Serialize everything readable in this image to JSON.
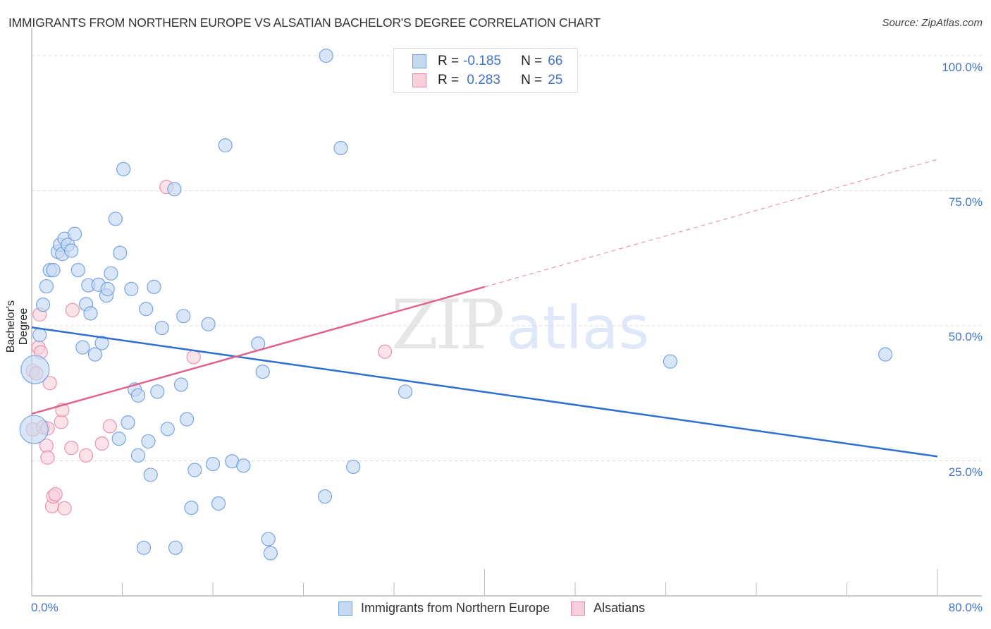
{
  "header": {
    "title": "IMMIGRANTS FROM NORTHERN EUROPE VS ALSATIAN BACHELOR'S DEGREE CORRELATION CHART",
    "source": "Source: ZipAtlas.com"
  },
  "legend_top": {
    "rows": [
      {
        "r_label": "R =",
        "r_value": "-0.185",
        "n_label": "N =",
        "n_value": "66"
      },
      {
        "r_label": "R =",
        "r_value": " 0.283",
        "n_label": "N =",
        "n_value": "25"
      }
    ]
  },
  "legend_bottom": {
    "items": [
      {
        "label": "Immigrants from Northern Europe"
      },
      {
        "label": "Alsatians"
      }
    ]
  },
  "axes": {
    "ylabel": "Bachelor's Degree",
    "yticks": [
      "100.0%",
      "75.0%",
      "50.0%",
      "25.0%"
    ],
    "xticks": [
      "0.0%",
      "80.0%"
    ]
  },
  "watermark": {
    "zip": "ZIP",
    "atlas": "atlas"
  },
  "colors": {
    "blue_fill": "#c5d9f3",
    "blue_stroke": "#6b9be0",
    "blue_line": "#2e6fd1",
    "pink_fill": "#f8cfdb",
    "pink_stroke": "#e88aa6",
    "pink_line": "#e0638b",
    "tick_label": "#3f74c8"
  },
  "chart_data": {
    "type": "scatter",
    "title": "IMMIGRANTS FROM NORTHERN EUROPE VS ALSATIAN BACHELOR'S DEGREE CORRELATION CHART",
    "xlabel": "",
    "ylabel": "Bachelor's Degree",
    "xlim": [
      0,
      80
    ],
    "ylim": [
      0,
      100
    ],
    "x_ticks_labeled": [
      "0.0%",
      "80.0%"
    ],
    "y_ticks_labeled": [
      "25.0%",
      "50.0%",
      "75.0%",
      "100.0%"
    ],
    "grid": "horizontal dashed",
    "legend_position": "top-center and bottom",
    "series": [
      {
        "name": "Immigrants from Northern Europe",
        "R": -0.185,
        "N": 66,
        "trend": {
          "x": [
            0,
            80
          ],
          "y": [
            49.7,
            25.8
          ]
        },
        "points": [
          [
            0.2,
            30.8,
            "large"
          ],
          [
            0.3,
            41.9,
            "large"
          ],
          [
            0.7,
            48.3
          ],
          [
            1.0,
            53.9
          ],
          [
            1.3,
            57.3
          ],
          [
            1.6,
            60.3
          ],
          [
            1.9,
            60.3
          ],
          [
            2.3,
            63.7
          ],
          [
            2.5,
            65.0
          ],
          [
            2.7,
            63.3
          ],
          [
            2.9,
            66.1
          ],
          [
            3.2,
            65.0
          ],
          [
            3.5,
            63.9
          ],
          [
            3.8,
            67.0
          ],
          [
            4.1,
            60.3
          ],
          [
            4.5,
            46.0
          ],
          [
            4.8,
            54.0
          ],
          [
            5.0,
            57.5
          ],
          [
            5.2,
            52.3
          ],
          [
            5.6,
            44.7
          ],
          [
            5.9,
            57.6
          ],
          [
            6.2,
            46.8
          ],
          [
            6.6,
            55.6
          ],
          [
            6.7,
            56.8
          ],
          [
            7.0,
            59.7
          ],
          [
            7.4,
            69.8
          ],
          [
            7.7,
            29.1
          ],
          [
            7.8,
            63.5
          ],
          [
            8.1,
            79.0
          ],
          [
            8.5,
            32.1
          ],
          [
            8.8,
            56.8
          ],
          [
            9.1,
            38.2
          ],
          [
            9.4,
            37.1
          ],
          [
            9.4,
            26.0
          ],
          [
            9.9,
            8.9
          ],
          [
            10.1,
            53.1
          ],
          [
            10.3,
            28.6
          ],
          [
            10.5,
            22.4
          ],
          [
            10.8,
            57.2
          ],
          [
            11.1,
            37.8
          ],
          [
            11.5,
            49.6
          ],
          [
            12.0,
            30.9
          ],
          [
            12.6,
            75.3
          ],
          [
            12.7,
            8.9
          ],
          [
            13.2,
            39.1
          ],
          [
            13.4,
            51.8
          ],
          [
            13.7,
            32.7
          ],
          [
            14.1,
            16.3
          ],
          [
            14.4,
            23.3
          ],
          [
            15.6,
            50.3
          ],
          [
            16.0,
            24.4
          ],
          [
            16.5,
            17.1
          ],
          [
            17.1,
            83.4
          ],
          [
            17.7,
            24.9
          ],
          [
            18.7,
            24.1
          ],
          [
            20.0,
            46.7
          ],
          [
            20.4,
            41.5
          ],
          [
            20.9,
            10.5
          ],
          [
            21.1,
            7.9
          ],
          [
            25.9,
            18.4
          ],
          [
            26.0,
            100.0
          ],
          [
            27.3,
            82.9
          ],
          [
            28.4,
            23.9
          ],
          [
            33.0,
            37.8
          ],
          [
            56.4,
            43.4
          ],
          [
            75.4,
            44.7
          ]
        ]
      },
      {
        "name": "Alsatians",
        "R": 0.283,
        "N": 25,
        "trend": {
          "x": [
            0,
            40,
            80
          ],
          "y": [
            33.7,
            57.2,
            80.8
          ],
          "solid_until_x": 40,
          "dashed_after": true
        },
        "points": [
          [
            0.1,
            41.7
          ],
          [
            0.1,
            30.8
          ],
          [
            0.4,
            41.2
          ],
          [
            0.6,
            46.0
          ],
          [
            0.7,
            52.1
          ],
          [
            0.8,
            45.1
          ],
          [
            1.0,
            31.2
          ],
          [
            1.3,
            27.8
          ],
          [
            1.4,
            25.6
          ],
          [
            1.4,
            31.0
          ],
          [
            1.6,
            39.4
          ],
          [
            1.8,
            16.6
          ],
          [
            1.9,
            18.4
          ],
          [
            2.1,
            18.8
          ],
          [
            2.6,
            32.2
          ],
          [
            2.7,
            34.4
          ],
          [
            2.9,
            16.2
          ],
          [
            3.5,
            27.4
          ],
          [
            3.6,
            52.9
          ],
          [
            4.8,
            26.0
          ],
          [
            6.2,
            28.2
          ],
          [
            6.9,
            31.4
          ],
          [
            11.9,
            75.7
          ],
          [
            14.3,
            44.2
          ],
          [
            31.2,
            45.2
          ]
        ]
      }
    ]
  }
}
